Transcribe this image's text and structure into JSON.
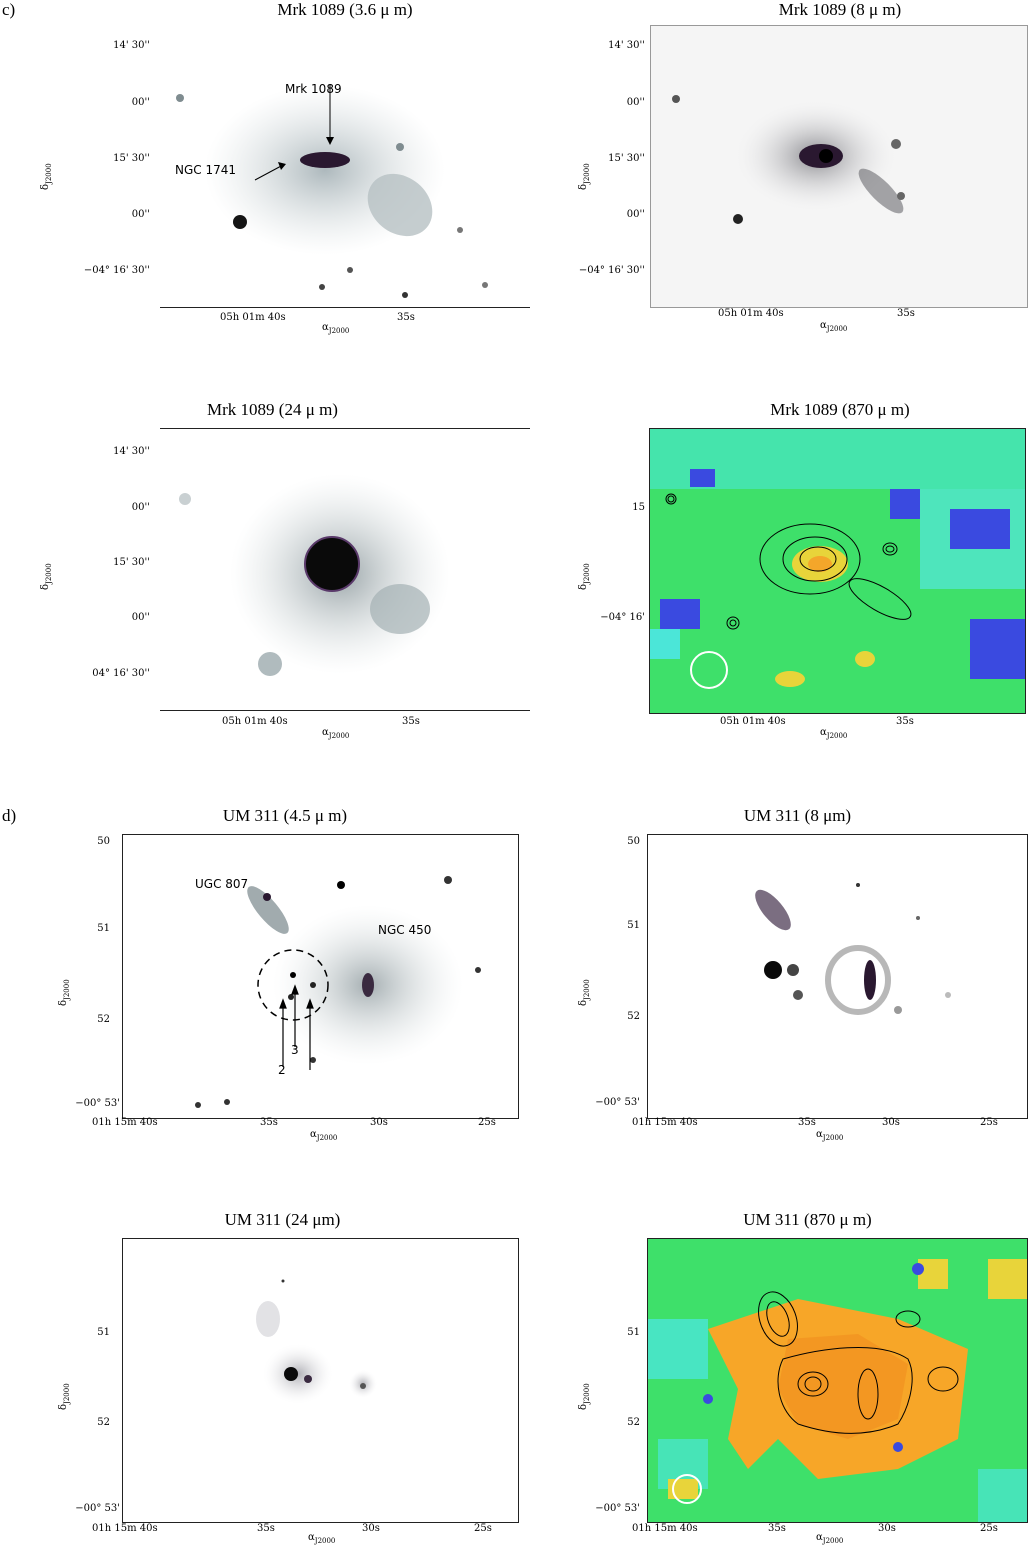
{
  "labels": {
    "c": "c)",
    "d": "d)"
  },
  "axes": {
    "dec": "δJ2000",
    "ra": "αJ2000",
    "dec_sym": "δ",
    "ra_sym": "α",
    "sub": "J2000"
  },
  "panels": [
    {
      "title": "Mrk 1089 (3.6 μ m)",
      "yticks": [
        "14' 30''",
        "00''",
        "15' 30''",
        "00''",
        "−04° 16' 30''"
      ],
      "xticks": [
        "05h 01m 40s",
        "35s"
      ],
      "annotations": [
        "Mrk 1089",
        "NGC 1741"
      ]
    },
    {
      "title": "Mrk 1089 (8 μ m)",
      "yticks": [
        "14' 30''",
        "00''",
        "15' 30''",
        "00''",
        "−04° 16' 30''"
      ],
      "xticks": [
        "05h 01m 40s",
        "35s"
      ]
    },
    {
      "title": "Mrk 1089 (24 μ m)",
      "yticks": [
        "14' 30''",
        "00''",
        "15' 30''",
        "00''",
        "04° 16' 30''"
      ],
      "xticks": [
        "05h 01m 40s",
        "35s"
      ]
    },
    {
      "title": "Mrk 1089 (870 μ m)",
      "yticks": [
        "15",
        "−04° 16'"
      ],
      "xticks": [
        "05h 01m 40s",
        "35s"
      ]
    },
    {
      "title": "UM 311 (4.5 μ m)",
      "yticks": [
        "50",
        "51",
        "52",
        "−00° 53'"
      ],
      "xticks": [
        "01h 15m 40s",
        "35s",
        "30s",
        "25s"
      ],
      "annotations": [
        "UGC 807",
        "NGC 450",
        "2",
        "3"
      ]
    },
    {
      "title": "UM 311 (8 μm)",
      "yticks": [
        "50",
        "51",
        "52",
        "−00° 53'"
      ],
      "xticks": [
        "01h 15m 40s",
        "35s",
        "30s",
        "25s"
      ]
    },
    {
      "title": "UM 311 (24 μm)",
      "yticks": [
        "51",
        "52",
        "−00° 53'"
      ],
      "xticks": [
        "01h 15m 40s",
        "35s",
        "30s",
        "25s"
      ]
    },
    {
      "title": "UM 311 (870 μ m)",
      "yticks": [
        "51",
        "52",
        "−00° 53'"
      ],
      "xticks": [
        "01h 15m 40s",
        "35s",
        "30s",
        "25s"
      ]
    }
  ]
}
